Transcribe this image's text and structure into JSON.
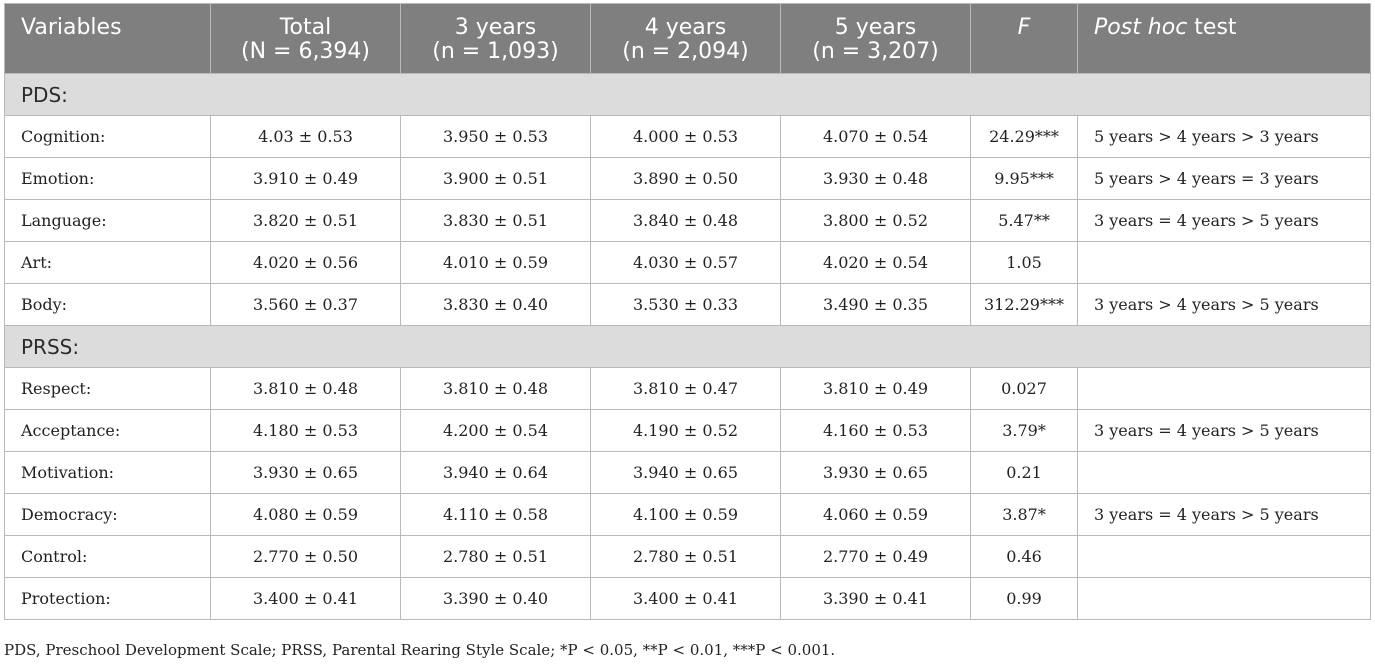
{
  "header": {
    "variables": "Variables",
    "total_title": "Total",
    "total_sub": "(N = 6,394)",
    "y3_title": "3 years",
    "y3_sub": "(n = 1,093)",
    "y4_title": "4 years",
    "y4_sub": "(n = 2,094)",
    "y5_title": "5 years",
    "y5_sub": "(n = 3,207)",
    "f": "F",
    "posthoc_italic": "Post hoc",
    "posthoc_rest": " test"
  },
  "sections": [
    {
      "label": "PDS:",
      "rows": [
        {
          "variable": "Cognition:",
          "total": "4.03 ± 0.53",
          "y3": "3.950 ± 0.53",
          "y4": "4.000 ± 0.53",
          "y5": "4.070 ± 0.54",
          "f": "24.29***",
          "posthoc": "5 years > 4 years > 3 years"
        },
        {
          "variable": "Emotion:",
          "total": "3.910 ± 0.49",
          "y3": "3.900 ± 0.51",
          "y4": "3.890 ± 0.50",
          "y5": "3.930 ± 0.48",
          "f": "9.95***",
          "posthoc": "5 years > 4 years = 3 years"
        },
        {
          "variable": "Language:",
          "total": "3.820 ± 0.51",
          "y3": "3.830 ± 0.51",
          "y4": "3.840 ± 0.48",
          "y5": "3.800 ± 0.52",
          "f": "5.47**",
          "posthoc": "3 years = 4 years > 5 years"
        },
        {
          "variable": "Art:",
          "total": "4.020 ± 0.56",
          "y3": "4.010 ± 0.59",
          "y4": "4.030 ± 0.57",
          "y5": "4.020 ± 0.54",
          "f": "1.05",
          "posthoc": ""
        },
        {
          "variable": "Body:",
          "total": "3.560 ± 0.37",
          "y3": "3.830 ± 0.40",
          "y4": "3.530 ± 0.33",
          "y5": "3.490 ± 0.35",
          "f": "312.29***",
          "posthoc": "3 years > 4 years > 5 years"
        }
      ]
    },
    {
      "label": "PRSS:",
      "rows": [
        {
          "variable": "Respect:",
          "total": "3.810 ± 0.48",
          "y3": "3.810 ± 0.48",
          "y4": "3.810 ± 0.47",
          "y5": "3.810 ± 0.49",
          "f": "0.027",
          "posthoc": ""
        },
        {
          "variable": "Acceptance:",
          "total": "4.180 ± 0.53",
          "y3": "4.200 ± 0.54",
          "y4": "4.190 ± 0.52",
          "y5": "4.160 ± 0.53",
          "f": "3.79*",
          "posthoc": "3 years = 4 years > 5 years"
        },
        {
          "variable": "Motivation:",
          "total": "3.930 ± 0.65",
          "y3": "3.940 ± 0.64",
          "y4": "3.940 ± 0.65",
          "y5": "3.930 ± 0.65",
          "f": "0.21",
          "posthoc": ""
        },
        {
          "variable": "Democracy:",
          "total": "4.080 ± 0.59",
          "y3": "4.110 ± 0.58",
          "y4": "4.100 ± 0.59",
          "y5": "4.060 ± 0.59",
          "f": "3.87*",
          "posthoc": "3 years = 4 years > 5 years"
        },
        {
          "variable": "Control:",
          "total": "2.770 ± 0.50",
          "y3": "2.780 ± 0.51",
          "y4": "2.780 ± 0.51",
          "y5": "2.770 ± 0.49",
          "f": "0.46",
          "posthoc": ""
        },
        {
          "variable": "Protection:",
          "total": "3.400 ± 0.41",
          "y3": "3.390 ± 0.40",
          "y4": "3.400 ± 0.41",
          "y5": "3.390 ± 0.41",
          "f": "0.99",
          "posthoc": ""
        }
      ]
    }
  ],
  "footnote": "PDS, Preschool Development Scale; PRSS, Parental Rearing Style Scale; *P < 0.05, **P < 0.01, ***P < 0.001.",
  "colors": {
    "header_bg": "#7f7f7f",
    "section_bg": "#dcdcdc",
    "border": "#b9b9b9"
  }
}
